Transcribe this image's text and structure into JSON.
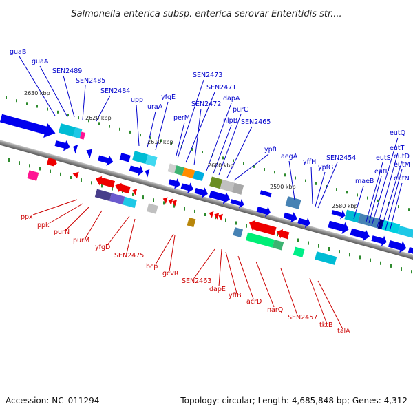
{
  "header": {
    "title": "Salmonella enterica subsp. enterica serovar Enteritidis str...."
  },
  "footer": {
    "accession": "Accession: NC_011294",
    "summary": "Topology: circular; Length: 4,685,848 bp; Genes: 4,312"
  },
  "scale": {
    "ticks": [
      "2630 kbp",
      "2620 kbp",
      "2610 kbp",
      "2600 kbp",
      "2590 kbp",
      "2580 kbp"
    ]
  },
  "genes_top": [
    "guaB",
    "guaA",
    "SEN2489",
    "SEN2485",
    "SEN2484",
    "upp",
    "uraA",
    "yfgE",
    "perM",
    "SEN2473",
    "SEN2471",
    "SEN2472",
    "dapA",
    "nlpB",
    "purC",
    "SEN2465",
    "ypfI",
    "aegA",
    "yffH",
    "ypfG",
    "SEN2454",
    "maeB",
    "eutS",
    "eutP",
    "eutQ",
    "eutT",
    "eutD",
    "eutM",
    "eutN"
  ],
  "genes_bottom": [
    "ppx",
    "ppk",
    "purN",
    "purM",
    "yfgD",
    "SEN2475",
    "bcp",
    "gcvR",
    "SEN2463",
    "dapE",
    "yffB",
    "acrD",
    "narQ",
    "SEN2457",
    "tktB",
    "talA"
  ],
  "colors": {
    "forward_cds": "#0000ee",
    "reverse_cds": "#ee0000",
    "forward_label": "#0000cc",
    "reverse_label": "#cc0000",
    "backbone": "#808080",
    "tick_mark": "#2e8b2e"
  }
}
